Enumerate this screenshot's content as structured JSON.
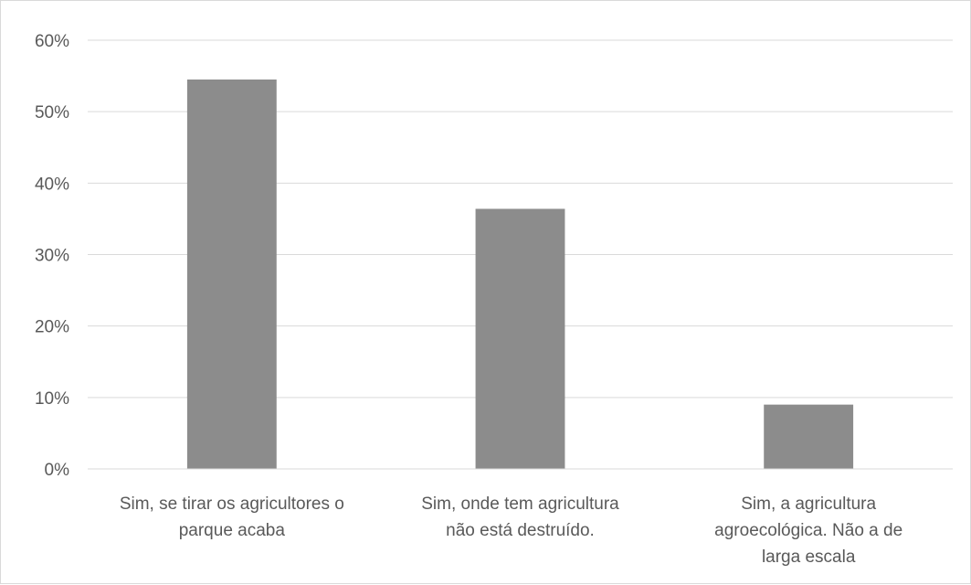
{
  "chart_data": {
    "type": "bar",
    "categories": [
      [
        "Sim, se tirar os agricultores o",
        "parque acaba"
      ],
      [
        "Sim, onde tem agricultura",
        "não está destruído."
      ],
      [
        "Sim, a agricultura",
        "agroecológica. Não a de",
        "larga escala"
      ]
    ],
    "values": [
      0.545,
      0.364,
      0.09
    ],
    "y_ticks": [
      "0%",
      "10%",
      "20%",
      "30%",
      "40%",
      "50%",
      "60%"
    ],
    "ylim": [
      0,
      0.6
    ],
    "title": "",
    "xlabel": "",
    "ylabel": "",
    "grid": true,
    "legend": "none",
    "bar_color": "#8c8c8c"
  }
}
